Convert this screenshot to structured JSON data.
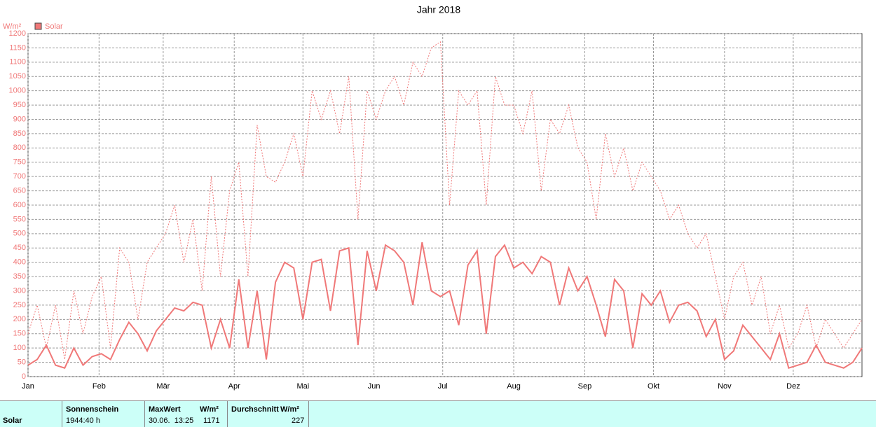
{
  "chart_data": {
    "type": "line",
    "title": "Jahr 2018",
    "y_label": "W/m²",
    "x": [
      1,
      5,
      9,
      13,
      17,
      21,
      25,
      29,
      33,
      37,
      41,
      45,
      49,
      53,
      57,
      61,
      65,
      69,
      73,
      77,
      81,
      85,
      89,
      93,
      97,
      101,
      105,
      109,
      113,
      117,
      121,
      125,
      129,
      133,
      137,
      141,
      145,
      149,
      153,
      157,
      161,
      165,
      169,
      173,
      177,
      181,
      185,
      189,
      193,
      197,
      201,
      205,
      209,
      213,
      217,
      221,
      225,
      229,
      233,
      237,
      241,
      245,
      249,
      253,
      257,
      261,
      265,
      269,
      273,
      277,
      281,
      285,
      289,
      293,
      297,
      301,
      305,
      309,
      313,
      317,
      321,
      325,
      329,
      333,
      337,
      341,
      345,
      349,
      353,
      357,
      361,
      365
    ],
    "series": [
      {
        "name": "Solar",
        "color": "#f07878",
        "style": "solid",
        "values": [
          40,
          60,
          110,
          40,
          30,
          100,
          40,
          70,
          80,
          60,
          130,
          190,
          150,
          90,
          160,
          200,
          240,
          230,
          260,
          250,
          100,
          200,
          100,
          340,
          100,
          300,
          60,
          330,
          400,
          380,
          200,
          400,
          410,
          230,
          440,
          450,
          110,
          440,
          300,
          460,
          440,
          400,
          250,
          470,
          300,
          280,
          300,
          180,
          390,
          440,
          150,
          420,
          460,
          380,
          400,
          360,
          420,
          400,
          250,
          380,
          300,
          350,
          250,
          140,
          340,
          300,
          100,
          290,
          250,
          300,
          190,
          250,
          260,
          230,
          140,
          200,
          60,
          90,
          180,
          140,
          100,
          60,
          150,
          30,
          40,
          50,
          110,
          50,
          40,
          30,
          50,
          100
        ]
      },
      {
        "color": "#f07878",
        "style": "dotted",
        "values": [
          150,
          250,
          100,
          250,
          60,
          300,
          150,
          280,
          350,
          100,
          450,
          400,
          200,
          400,
          450,
          500,
          600,
          400,
          550,
          300,
          700,
          350,
          650,
          750,
          350,
          880,
          700,
          680,
          750,
          850,
          700,
          1000,
          900,
          1000,
          850,
          1050,
          550,
          1000,
          900,
          1000,
          1050,
          950,
          1100,
          1050,
          1150,
          1171,
          600,
          1000,
          950,
          1000,
          600,
          1050,
          950,
          950,
          850,
          1000,
          650,
          900,
          850,
          950,
          800,
          750,
          550,
          850,
          700,
          800,
          650,
          750,
          700,
          650,
          550,
          600,
          500,
          450,
          500,
          350,
          200,
          350,
          400,
          250,
          350,
          150,
          250,
          100,
          150,
          250,
          100,
          200,
          150,
          100,
          150,
          200
        ]
      }
    ],
    "xlim": [
      1,
      365
    ],
    "xticks": [
      {
        "value": 1,
        "label": "Jan"
      },
      {
        "value": 32,
        "label": "Feb"
      },
      {
        "value": 60,
        "label": "Mär"
      },
      {
        "value": 91,
        "label": "Apr"
      },
      {
        "value": 121,
        "label": "Mai"
      },
      {
        "value": 152,
        "label": "Jun"
      },
      {
        "value": 182,
        "label": "Jul"
      },
      {
        "value": 213,
        "label": "Aug"
      },
      {
        "value": 244,
        "label": "Sep"
      },
      {
        "value": 274,
        "label": "Okt"
      },
      {
        "value": 305,
        "label": "Nov"
      },
      {
        "value": 335,
        "label": "Dez"
      }
    ],
    "ylim": [
      0,
      1200
    ],
    "yticks": [
      0,
      50,
      100,
      150,
      200,
      250,
      300,
      350,
      400,
      450,
      500,
      550,
      600,
      650,
      700,
      750,
      800,
      850,
      900,
      950,
      1000,
      1050,
      1100,
      1150,
      1200
    ],
    "grid": true,
    "legend": "top-left"
  },
  "table": {
    "row_label": "Solar",
    "col1": {
      "header": "Sonnenschein",
      "value": "1944:40 h"
    },
    "col2": {
      "header": "MaxWert",
      "unit": "W/m²",
      "date": "30.06.  13:25",
      "value": "1171"
    },
    "col3": {
      "header": "Durchschnitt",
      "unit": "W/m²",
      "value": "227"
    }
  }
}
